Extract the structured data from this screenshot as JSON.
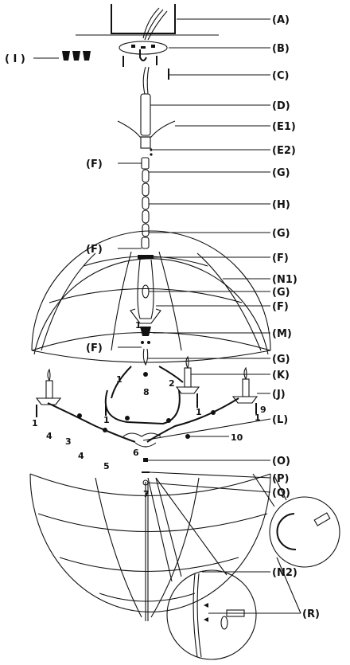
{
  "labels": {
    "A": "(A)",
    "B": "(B)",
    "C": "(C)",
    "D": "(D)",
    "E1": "(E1)",
    "E2": "(E2)",
    "F": "(F)",
    "G": "(G)",
    "H": "(H)",
    "N1": "(N1)",
    "M": "(M)",
    "K": "(K)",
    "J": "(J)",
    "L": "(L)",
    "O": "(O)",
    "P": "(P)",
    "Q": "(Q)",
    "N2": "(N2)",
    "R": "(R)",
    "I": "( I )"
  },
  "numbers": [
    "1",
    "2",
    "3",
    "4",
    "5",
    "6",
    "7",
    "8",
    "9",
    "10"
  ]
}
